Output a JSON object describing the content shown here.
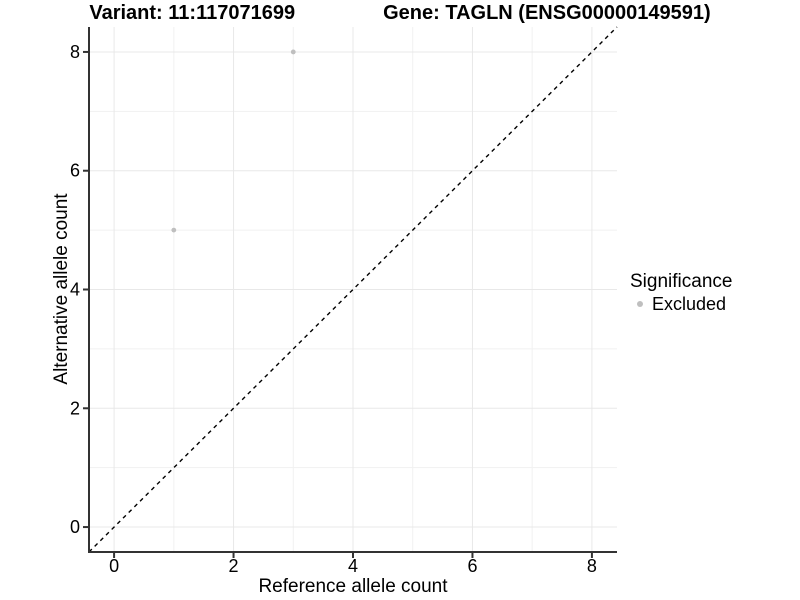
{
  "title": {
    "variant": "Variant: 11:117071699",
    "gene": "Gene: TAGLN (ENSG00000149591)"
  },
  "legend": {
    "title": "Significance",
    "items": [
      {
        "label": "Excluded",
        "color": "#bfbfbf",
        "marker": "point"
      }
    ]
  },
  "chart_data": {
    "type": "scatter",
    "title": "Variant: 11:117071699   Gene: TAGLN (ENSG00000149591)",
    "xlabel": "Reference allele count",
    "ylabel": "Alternative allele count",
    "xlim": [
      -0.42,
      8.42
    ],
    "ylim": [
      -0.42,
      8.42
    ],
    "x_ticks": [
      0,
      2,
      4,
      6,
      8
    ],
    "y_ticks": [
      0,
      2,
      4,
      6,
      8
    ],
    "x_minor": [
      1,
      3,
      5,
      7
    ],
    "y_minor": [
      1,
      3,
      5,
      7
    ],
    "grid": "major+minor",
    "legend_position": "right",
    "series": [
      {
        "name": "Excluded",
        "color": "#bfbfbf",
        "points": [
          {
            "x": 3,
            "y": 8
          },
          {
            "x": 1,
            "y": 5
          }
        ]
      }
    ],
    "reference_line": {
      "type": "identity y=x",
      "linetype": "dashed",
      "color": "#000000"
    }
  },
  "colors": {
    "background": "#ffffff",
    "grid_major": "#e8e8e8",
    "grid_minor": "#f1f1f1",
    "axis": "#333333",
    "text": "#000000",
    "point": "#bfbfbf"
  }
}
